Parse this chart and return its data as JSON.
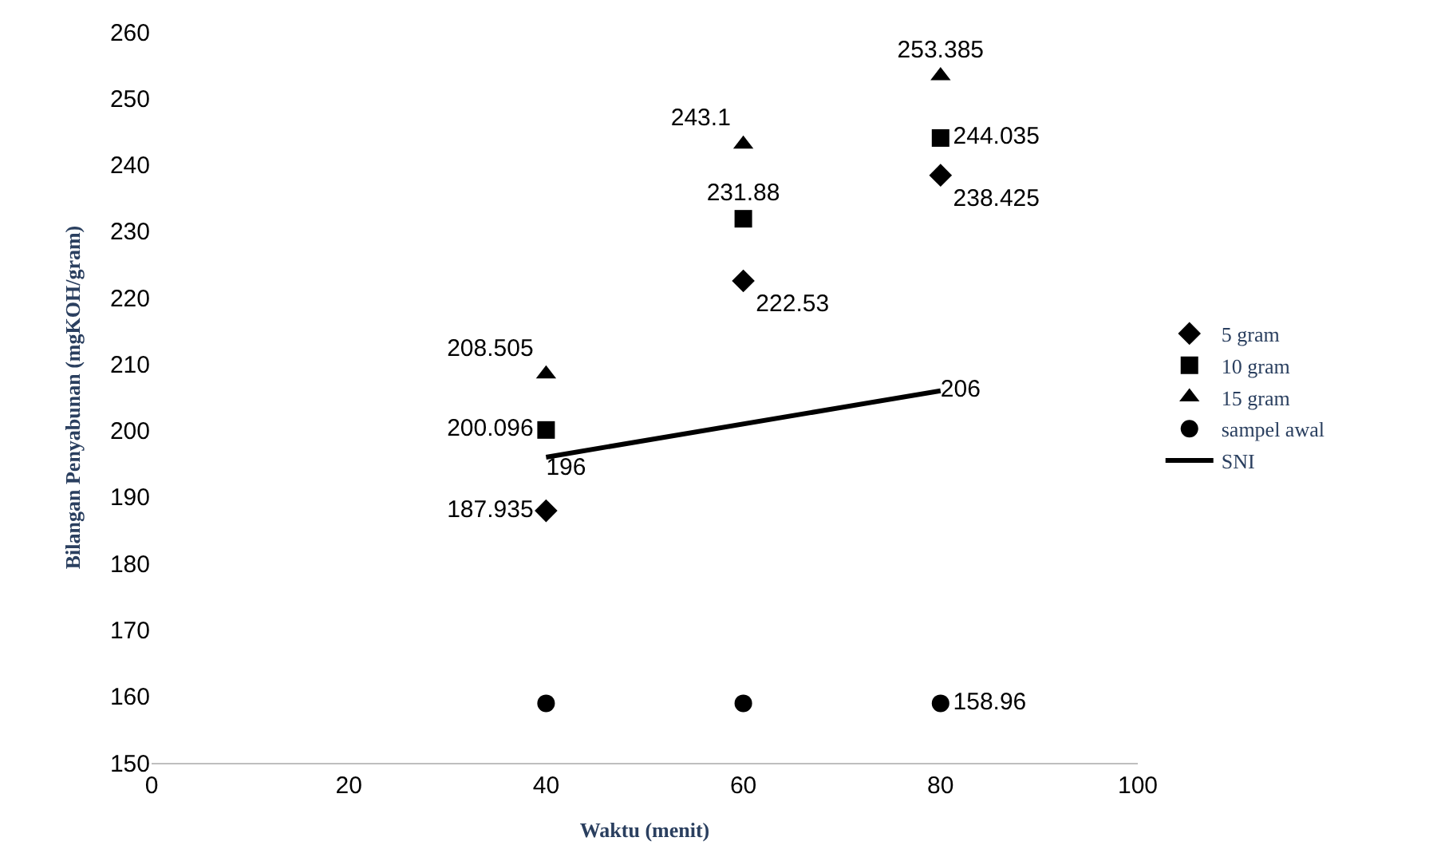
{
  "chart_data": {
    "type": "scatter",
    "xlabel": "Waktu (menit)",
    "ylabel": "Bilangan Penyabunan (mgKOH/gram)",
    "x": [
      40,
      60,
      80
    ],
    "series": [
      {
        "name": "5 gram",
        "color": "#000000",
        "marker": "diamond",
        "values": [
          187.935,
          222.53,
          238.425
        ],
        "value_labels": [
          "187.935",
          "222.53",
          "238.425"
        ]
      },
      {
        "name": "10 gram",
        "color": "#000000",
        "marker": "square",
        "values": [
          200.096,
          231.88,
          244.035
        ],
        "value_labels": [
          "200.096",
          "231.88",
          "244.035"
        ]
      },
      {
        "name": "15 gram",
        "color": "#000000",
        "marker": "triangle",
        "values": [
          208.505,
          243.1,
          253.385
        ],
        "value_labels": [
          "208.505",
          "243.1",
          "253.385"
        ]
      },
      {
        "name": "sampel awal",
        "color": "#000000",
        "marker": "circle",
        "values": [
          158.96,
          158.96,
          158.96
        ],
        "value_labels": [
          null,
          null,
          "158.96"
        ]
      },
      {
        "name": "SNI",
        "type": "line",
        "color": "#000000",
        "x": [
          40,
          80
        ],
        "values": [
          196,
          206
        ],
        "value_labels": [
          "196",
          "206"
        ]
      }
    ],
    "xlim": [
      0,
      100
    ],
    "xticks": [
      0,
      20,
      40,
      60,
      80,
      100
    ],
    "ylim": [
      150,
      260
    ],
    "yticks": [
      150,
      160,
      170,
      180,
      190,
      200,
      210,
      220,
      230,
      240,
      250,
      260
    ],
    "grid": false,
    "legend": "right"
  }
}
